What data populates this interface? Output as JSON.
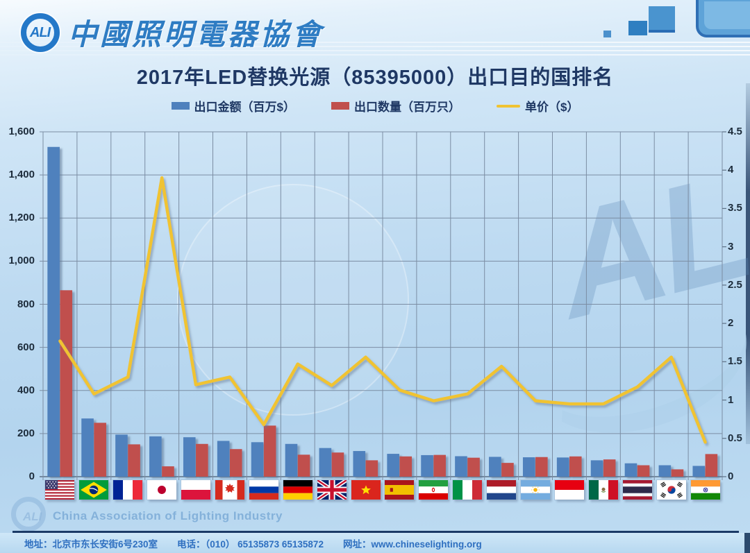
{
  "header": {
    "logo_text": "ALI",
    "org_name_zh": "中國照明電器協會",
    "org_name_en": "China Association of Lighting Industry"
  },
  "title": "2017年LED替换光源（85395000）出口目的国排名",
  "legend": [
    {
      "label": "出口金额（百万$）",
      "marker": "bar",
      "color": "#4f81bd"
    },
    {
      "label": "出口数量（百万只）",
      "marker": "bar",
      "color": "#c0504d"
    },
    {
      "label": "单价（$）",
      "marker": "line",
      "color": "#f0c332"
    }
  ],
  "chart_data": {
    "type": "bar+line",
    "title": "2017年LED替换光源（85395000）出口目的国排名",
    "categories": [
      {
        "name_zh": "美国",
        "name_en": "United States",
        "flag": "us"
      },
      {
        "name_zh": "巴西",
        "name_en": "Brazil",
        "flag": "br"
      },
      {
        "name_zh": "法国",
        "name_en": "France",
        "flag": "fr"
      },
      {
        "name_zh": "日本",
        "name_en": "Japan",
        "flag": "jp"
      },
      {
        "name_zh": "波兰",
        "name_en": "Poland",
        "flag": "pl"
      },
      {
        "name_zh": "加拿大",
        "name_en": "Canada",
        "flag": "ca"
      },
      {
        "name_zh": "俄罗斯",
        "name_en": "Russia",
        "flag": "ru"
      },
      {
        "name_zh": "德国",
        "name_en": "Germany",
        "flag": "de"
      },
      {
        "name_zh": "英国",
        "name_en": "United Kingdom",
        "flag": "gb"
      },
      {
        "name_zh": "越南",
        "name_en": "Vietnam",
        "flag": "vn"
      },
      {
        "name_zh": "西班牙",
        "name_en": "Spain",
        "flag": "es"
      },
      {
        "name_zh": "伊朗",
        "name_en": "Iran",
        "flag": "ir"
      },
      {
        "name_zh": "意大利",
        "name_en": "Italy",
        "flag": "it"
      },
      {
        "name_zh": "荷兰",
        "name_en": "Netherlands",
        "flag": "nl"
      },
      {
        "name_zh": "阿根廷",
        "name_en": "Argentina",
        "flag": "ar"
      },
      {
        "name_zh": "印度尼西亚",
        "name_en": "Indonesia",
        "flag": "id"
      },
      {
        "name_zh": "墨西哥",
        "name_en": "Mexico",
        "flag": "mx"
      },
      {
        "name_zh": "泰国",
        "name_en": "Thailand",
        "flag": "th"
      },
      {
        "name_zh": "韩国",
        "name_en": "South Korea",
        "flag": "kr"
      },
      {
        "name_zh": "印度",
        "name_en": "India",
        "flag": "in"
      }
    ],
    "series": [
      {
        "name": "出口金额（百万$）",
        "type": "bar",
        "axis": "left",
        "color": "#4f81bd",
        "values": [
          1530,
          270,
          195,
          187,
          183,
          166,
          160,
          152,
          133,
          119,
          106,
          100,
          95,
          92,
          90,
          89,
          76,
          62,
          53,
          50
        ]
      },
      {
        "name": "出口数量（百万只）",
        "type": "bar",
        "axis": "left",
        "color": "#c0504d",
        "values": [
          865,
          250,
          150,
          48,
          152,
          128,
          237,
          102,
          112,
          76,
          94,
          101,
          88,
          64,
          91,
          94,
          80,
          53,
          34,
          105
        ]
      },
      {
        "name": "单价（$）",
        "type": "line",
        "axis": "right",
        "color": "#f0c332",
        "values": [
          1.77,
          1.08,
          1.3,
          3.9,
          1.2,
          1.3,
          0.68,
          1.47,
          1.19,
          1.56,
          1.13,
          0.99,
          1.08,
          1.44,
          0.99,
          0.95,
          0.95,
          1.17,
          1.56,
          0.45
        ]
      }
    ],
    "left_axis": {
      "min": 0,
      "max": 1600,
      "step": 200,
      "ticks": [
        "0",
        "200",
        "400",
        "600",
        "800",
        "1,000",
        "1,200",
        "1,400",
        "1,600"
      ]
    },
    "right_axis": {
      "min": 0,
      "max": 4.5,
      "step": 0.5,
      "ticks": [
        "0",
        "0.5",
        "1",
        "1.5",
        "2",
        "2.5",
        "3",
        "3.5",
        "4",
        "4.5"
      ]
    },
    "grid": true,
    "legend_position": "top"
  },
  "footer": {
    "address_label": "地址：",
    "address": "北京市东长安街6号230室",
    "phone_label": "电话：",
    "phone": "（010） 65135873 65135872",
    "web_label": "网址：",
    "web": "www.chineselighting.org"
  }
}
